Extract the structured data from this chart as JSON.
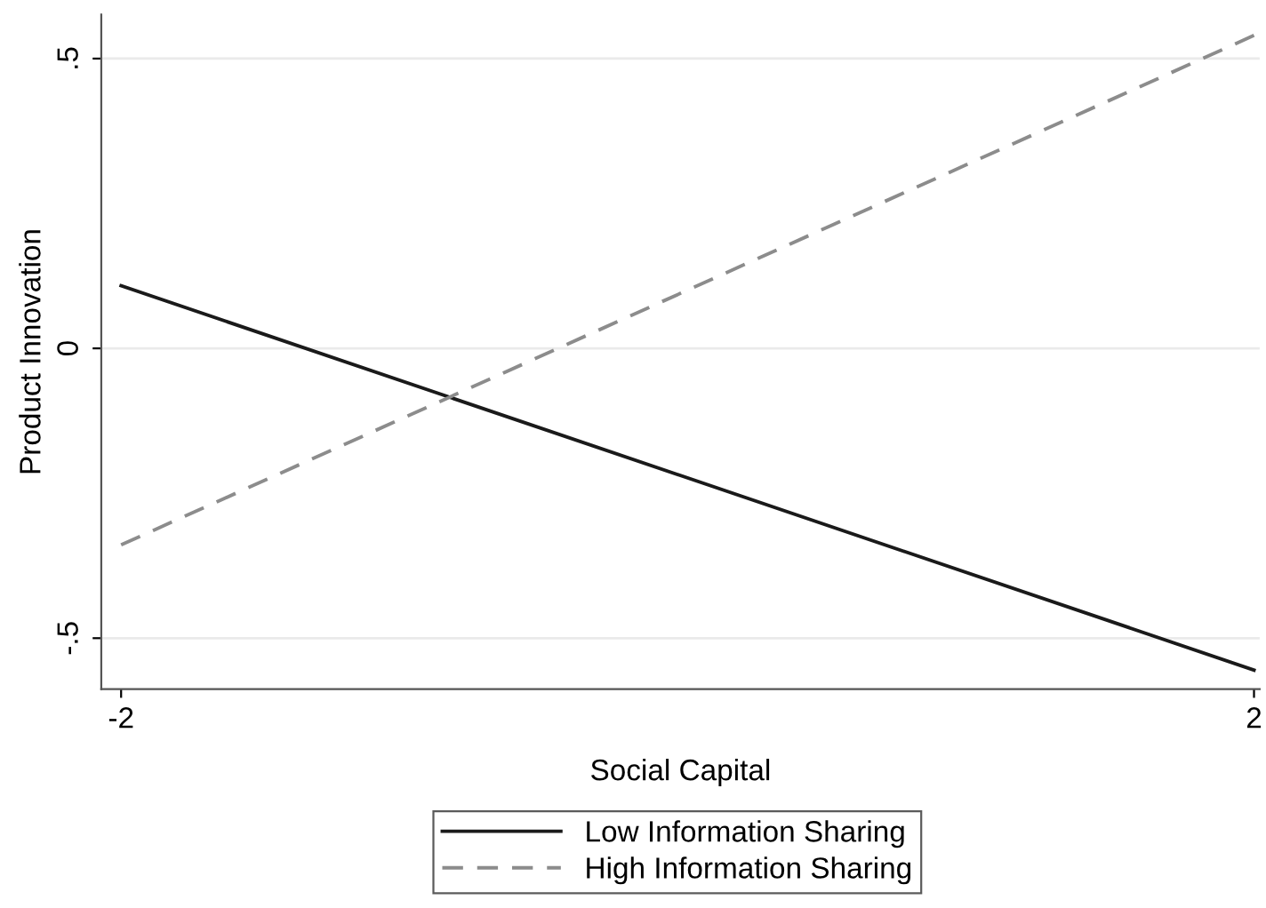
{
  "chart_data": {
    "type": "line",
    "xlabel": "Social Capital",
    "ylabel": "Product Innovation",
    "x": [
      -2,
      2
    ],
    "series": [
      {
        "name": "Low Information Sharing",
        "color": "#1a1a1a",
        "values": [
          0.108,
          -0.555
        ],
        "line_style": "solid"
      },
      {
        "name": "High Information Sharing",
        "color": "#8c8c8c",
        "values": [
          -0.339,
          0.54
        ],
        "line_style": "dashed"
      }
    ],
    "xlim": [
      -2.07,
      2.02
    ],
    "xticks": [
      -2,
      2
    ],
    "ylim": [
      -0.588,
      0.576
    ],
    "yticks": [
      {
        "value": -0.5,
        "label": "-.5"
      },
      0,
      {
        "value": 0.5,
        "label": ".5"
      }
    ],
    "grid": "y",
    "legend": "bottom",
    "marker": "none"
  }
}
